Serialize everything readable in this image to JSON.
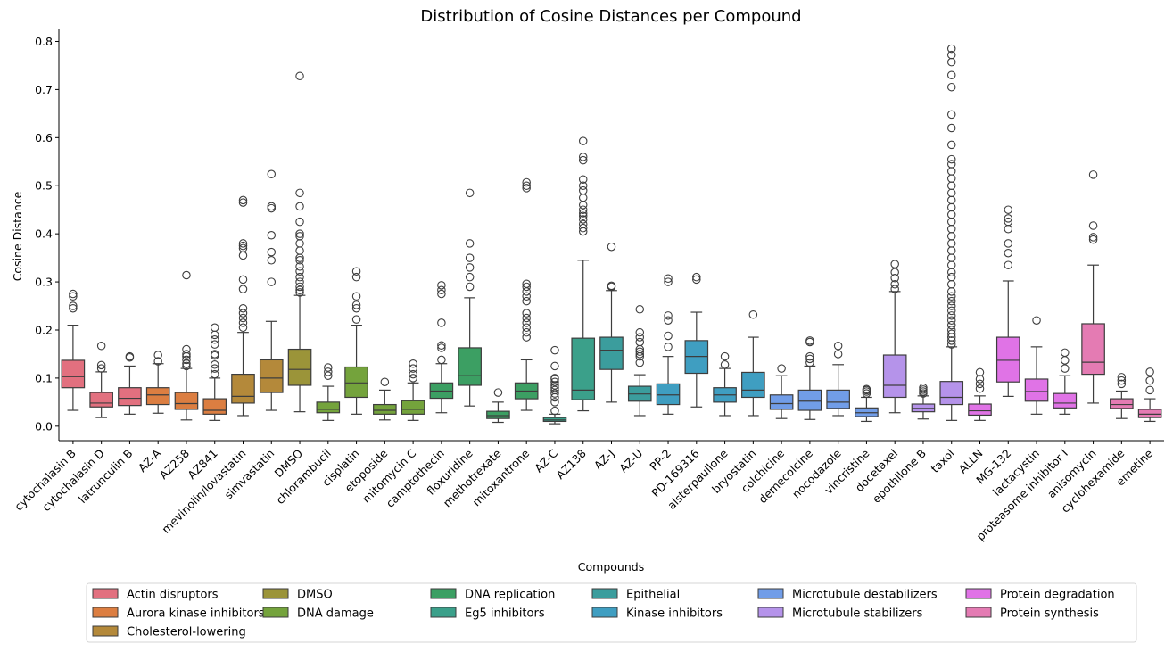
{
  "chart_data": {
    "type": "boxplot",
    "title": "Distribution of Cosine Distances per Compound",
    "xlabel": "Compounds",
    "ylabel": "Cosine Distance",
    "ylim": [
      -0.03,
      0.825
    ],
    "yticks": [
      0.0,
      0.1,
      0.2,
      0.3,
      0.4,
      0.5,
      0.6,
      0.7,
      0.8
    ],
    "ytick_labels": [
      "0.0",
      "0.1",
      "0.2",
      "0.3",
      "0.4",
      "0.5",
      "0.6",
      "0.7",
      "0.8"
    ],
    "grid": false,
    "legend_placement": "bottom-center",
    "legend": [
      {
        "name": "Actin disruptors",
        "color": "#e2707f"
      },
      {
        "name": "Aurora kinase inhibitors",
        "color": "#dc7e41"
      },
      {
        "name": "Cholesterol-lowering",
        "color": "#b4893a"
      },
      {
        "name": "DMSO",
        "color": "#9b9439"
      },
      {
        "name": "DNA damage",
        "color": "#74a33c"
      },
      {
        "name": "DNA replication",
        "color": "#3c9f63"
      },
      {
        "name": "Eg5 inhibitors",
        "color": "#3ba08a"
      },
      {
        "name": "Epithelial",
        "color": "#3b9d9d"
      },
      {
        "name": "Kinase inhibitors",
        "color": "#3f9ec1"
      },
      {
        "name": "Microtubule destabilizers",
        "color": "#719de8"
      },
      {
        "name": "Microtubule stabilizers",
        "color": "#b593ea"
      },
      {
        "name": "Protein degradation",
        "color": "#e073e6"
      },
      {
        "name": "Protein synthesis",
        "color": "#e47bb3"
      }
    ],
    "compounds": [
      {
        "name": "cytochalasin B",
        "group": "Actin disruptors",
        "q1": 0.08,
        "median": 0.103,
        "q3": 0.137,
        "whislo": 0.033,
        "whishi": 0.21,
        "fliers": [
          0.245,
          0.25,
          0.27,
          0.275
        ]
      },
      {
        "name": "cytochalasin D",
        "group": "Actin disruptors",
        "q1": 0.04,
        "median": 0.048,
        "q3": 0.07,
        "whislo": 0.018,
        "whishi": 0.113,
        "fliers": [
          0.12,
          0.127,
          0.167
        ]
      },
      {
        "name": "latrunculin B",
        "group": "Actin disruptors",
        "q1": 0.043,
        "median": 0.058,
        "q3": 0.08,
        "whislo": 0.025,
        "whishi": 0.125,
        "fliers": [
          0.143,
          0.145
        ]
      },
      {
        "name": "AZ-A",
        "group": "Aurora kinase inhibitors",
        "q1": 0.045,
        "median": 0.065,
        "q3": 0.08,
        "whislo": 0.027,
        "whishi": 0.13,
        "fliers": [
          0.135,
          0.148
        ]
      },
      {
        "name": "AZ258",
        "group": "Aurora kinase inhibitors",
        "q1": 0.035,
        "median": 0.047,
        "q3": 0.07,
        "whislo": 0.013,
        "whishi": 0.12,
        "fliers": [
          0.125,
          0.13,
          0.138,
          0.145,
          0.15,
          0.16,
          0.314
        ]
      },
      {
        "name": "AZ841",
        "group": "Aurora kinase inhibitors",
        "q1": 0.025,
        "median": 0.033,
        "q3": 0.057,
        "whislo": 0.012,
        "whishi": 0.1,
        "fliers": [
          0.108,
          0.12,
          0.128,
          0.147,
          0.15,
          0.17,
          0.18,
          0.19,
          0.205
        ]
      },
      {
        "name": "mevinolin/lovastatin",
        "group": "Cholesterol-lowering",
        "q1": 0.048,
        "median": 0.062,
        "q3": 0.108,
        "whislo": 0.022,
        "whishi": 0.195,
        "fliers": [
          0.205,
          0.215,
          0.225,
          0.235,
          0.245,
          0.285,
          0.305,
          0.355,
          0.37,
          0.375,
          0.38,
          0.465,
          0.47
        ]
      },
      {
        "name": "simvastatin",
        "group": "Cholesterol-lowering",
        "q1": 0.07,
        "median": 0.1,
        "q3": 0.138,
        "whislo": 0.033,
        "whishi": 0.218,
        "fliers": [
          0.3,
          0.345,
          0.362,
          0.397,
          0.453,
          0.457,
          0.524
        ]
      },
      {
        "name": "DMSO",
        "group": "DMSO",
        "q1": 0.085,
        "median": 0.118,
        "q3": 0.16,
        "whislo": 0.03,
        "whishi": 0.272,
        "fliers": [
          0.278,
          0.283,
          0.29,
          0.3,
          0.31,
          0.322,
          0.332,
          0.345,
          0.35,
          0.365,
          0.38,
          0.395,
          0.4,
          0.425,
          0.457,
          0.485,
          0.728
        ]
      },
      {
        "name": "chlorambucil",
        "group": "DNA damage",
        "q1": 0.028,
        "median": 0.035,
        "q3": 0.05,
        "whislo": 0.012,
        "whishi": 0.083,
        "fliers": [
          0.105,
          0.113,
          0.122
        ]
      },
      {
        "name": "cisplatin",
        "group": "DNA damage",
        "q1": 0.06,
        "median": 0.09,
        "q3": 0.123,
        "whislo": 0.025,
        "whishi": 0.21,
        "fliers": [
          0.222,
          0.245,
          0.252,
          0.27,
          0.31,
          0.322
        ]
      },
      {
        "name": "etoposide",
        "group": "DNA damage",
        "q1": 0.025,
        "median": 0.033,
        "q3": 0.045,
        "whislo": 0.013,
        "whishi": 0.075,
        "fliers": [
          0.092
        ]
      },
      {
        "name": "mitomycin C",
        "group": "DNA damage",
        "q1": 0.025,
        "median": 0.035,
        "q3": 0.053,
        "whislo": 0.012,
        "whishi": 0.09,
        "fliers": [
          0.1,
          0.108,
          0.12,
          0.13
        ]
      },
      {
        "name": "camptothecin",
        "group": "DNA replication",
        "q1": 0.058,
        "median": 0.073,
        "q3": 0.09,
        "whislo": 0.028,
        "whishi": 0.13,
        "fliers": [
          0.138,
          0.163,
          0.168,
          0.215,
          0.275,
          0.283,
          0.293
        ]
      },
      {
        "name": "floxuridine",
        "group": "DNA replication",
        "q1": 0.085,
        "median": 0.105,
        "q3": 0.163,
        "whislo": 0.042,
        "whishi": 0.267,
        "fliers": [
          0.29,
          0.31,
          0.33,
          0.35,
          0.38,
          0.485
        ]
      },
      {
        "name": "methotrexate",
        "group": "DNA replication",
        "q1": 0.016,
        "median": 0.022,
        "q3": 0.031,
        "whislo": 0.008,
        "whishi": 0.05,
        "fliers": [
          0.07
        ]
      },
      {
        "name": "mitoxantrone",
        "group": "DNA replication",
        "q1": 0.057,
        "median": 0.073,
        "q3": 0.09,
        "whislo": 0.033,
        "whishi": 0.138,
        "fliers": [
          0.185,
          0.195,
          0.205,
          0.215,
          0.225,
          0.235,
          0.26,
          0.27,
          0.28,
          0.29,
          0.296,
          0.495,
          0.5,
          0.507
        ]
      },
      {
        "name": "AZ-C",
        "group": "Eg5 inhibitors",
        "q1": 0.01,
        "median": 0.013,
        "q3": 0.018,
        "whislo": 0.005,
        "whishi": 0.025,
        "fliers": [
          0.032,
          0.05,
          0.06,
          0.068,
          0.075,
          0.08,
          0.085,
          0.092,
          0.098,
          0.1,
          0.125,
          0.158
        ]
      },
      {
        "name": "AZ138",
        "group": "Eg5 inhibitors",
        "q1": 0.055,
        "median": 0.075,
        "q3": 0.183,
        "whislo": 0.032,
        "whishi": 0.345,
        "fliers": [
          0.405,
          0.412,
          0.42,
          0.43,
          0.437,
          0.443,
          0.45,
          0.46,
          0.475,
          0.49,
          0.5,
          0.513,
          0.553,
          0.56,
          0.593
        ]
      },
      {
        "name": "AZ-J",
        "group": "Epithelial",
        "q1": 0.118,
        "median": 0.158,
        "q3": 0.185,
        "whislo": 0.05,
        "whishi": 0.282,
        "fliers": [
          0.29,
          0.292,
          0.373
        ]
      },
      {
        "name": "AZ-U",
        "group": "Epithelial",
        "q1": 0.052,
        "median": 0.067,
        "q3": 0.083,
        "whislo": 0.022,
        "whishi": 0.107,
        "fliers": [
          0.132,
          0.145,
          0.15,
          0.155,
          0.16,
          0.175,
          0.185,
          0.195,
          0.243
        ]
      },
      {
        "name": "PP-2",
        "group": "Kinase inhibitors",
        "q1": 0.045,
        "median": 0.065,
        "q3": 0.088,
        "whislo": 0.025,
        "whishi": 0.145,
        "fliers": [
          0.165,
          0.188,
          0.22,
          0.23,
          0.3,
          0.307
        ]
      },
      {
        "name": "PD-169316",
        "group": "Kinase inhibitors",
        "q1": 0.11,
        "median": 0.145,
        "q3": 0.178,
        "whislo": 0.04,
        "whishi": 0.237,
        "fliers": [
          0.305,
          0.31
        ]
      },
      {
        "name": "alsterpaullone",
        "group": "Kinase inhibitors",
        "q1": 0.05,
        "median": 0.065,
        "q3": 0.08,
        "whislo": 0.022,
        "whishi": 0.12,
        "fliers": [
          0.128,
          0.145
        ]
      },
      {
        "name": "bryostatin",
        "group": "Kinase inhibitors",
        "q1": 0.06,
        "median": 0.075,
        "q3": 0.112,
        "whislo": 0.022,
        "whishi": 0.185,
        "fliers": [
          0.232
        ]
      },
      {
        "name": "colchicine",
        "group": "Microtubule destabilizers",
        "q1": 0.035,
        "median": 0.047,
        "q3": 0.065,
        "whislo": 0.016,
        "whishi": 0.105,
        "fliers": [
          0.12
        ]
      },
      {
        "name": "demecolcine",
        "group": "Microtubule destabilizers",
        "q1": 0.033,
        "median": 0.052,
        "q3": 0.075,
        "whislo": 0.014,
        "whishi": 0.125,
        "fliers": [
          0.132,
          0.14,
          0.145,
          0.175,
          0.178
        ]
      },
      {
        "name": "nocodazole",
        "group": "Microtubule destabilizers",
        "q1": 0.037,
        "median": 0.05,
        "q3": 0.075,
        "whislo": 0.022,
        "whishi": 0.128,
        "fliers": [
          0.15,
          0.167
        ]
      },
      {
        "name": "vincristine",
        "group": "Microtubule destabilizers",
        "q1": 0.02,
        "median": 0.028,
        "q3": 0.038,
        "whislo": 0.01,
        "whishi": 0.06,
        "fliers": [
          0.068,
          0.072,
          0.075,
          0.077
        ]
      },
      {
        "name": "docetaxel",
        "group": "Microtubule stabilizers",
        "q1": 0.06,
        "median": 0.085,
        "q3": 0.148,
        "whislo": 0.028,
        "whishi": 0.28,
        "fliers": [
          0.285,
          0.295,
          0.308,
          0.32,
          0.337
        ]
      },
      {
        "name": "epothilone B",
        "group": "Microtubule stabilizers",
        "q1": 0.03,
        "median": 0.037,
        "q3": 0.046,
        "whislo": 0.015,
        "whishi": 0.063,
        "fliers": [
          0.068,
          0.072,
          0.076,
          0.08
        ]
      },
      {
        "name": "taxol",
        "group": "Microtubule stabilizers",
        "q1": 0.045,
        "median": 0.06,
        "q3": 0.093,
        "whislo": 0.012,
        "whishi": 0.165,
        "fliers": [
          0.17,
          0.178,
          0.185,
          0.192,
          0.2,
          0.21,
          0.22,
          0.23,
          0.24,
          0.25,
          0.26,
          0.27,
          0.28,
          0.295,
          0.31,
          0.32,
          0.335,
          0.35,
          0.365,
          0.38,
          0.395,
          0.41,
          0.425,
          0.44,
          0.455,
          0.47,
          0.485,
          0.5,
          0.515,
          0.53,
          0.545,
          0.555,
          0.585,
          0.62,
          0.648,
          0.705,
          0.73,
          0.757,
          0.772,
          0.785
        ]
      },
      {
        "name": "ALLN",
        "group": "Protein degradation",
        "q1": 0.023,
        "median": 0.032,
        "q3": 0.046,
        "whislo": 0.012,
        "whishi": 0.063,
        "fliers": [
          0.078,
          0.088,
          0.098,
          0.112
        ]
      },
      {
        "name": "MG-132",
        "group": "Protein degradation",
        "q1": 0.092,
        "median": 0.137,
        "q3": 0.185,
        "whislo": 0.062,
        "whishi": 0.302,
        "fliers": [
          0.335,
          0.36,
          0.38,
          0.41,
          0.425,
          0.432,
          0.45
        ]
      },
      {
        "name": "lactacystin",
        "group": "Protein degradation",
        "q1": 0.052,
        "median": 0.072,
        "q3": 0.098,
        "whislo": 0.025,
        "whishi": 0.165,
        "fliers": [
          0.22
        ]
      },
      {
        "name": "proteasome inhibitor I",
        "group": "Protein degradation",
        "q1": 0.038,
        "median": 0.048,
        "q3": 0.068,
        "whislo": 0.025,
        "whishi": 0.105,
        "fliers": [
          0.12,
          0.137,
          0.153
        ]
      },
      {
        "name": "anisomycin",
        "group": "Protein synthesis",
        "q1": 0.108,
        "median": 0.133,
        "q3": 0.213,
        "whislo": 0.048,
        "whishi": 0.335,
        "fliers": [
          0.388,
          0.393,
          0.417,
          0.523
        ]
      },
      {
        "name": "cyclohexamide",
        "group": "Protein synthesis",
        "q1": 0.037,
        "median": 0.045,
        "q3": 0.057,
        "whislo": 0.016,
        "whishi": 0.073,
        "fliers": [
          0.088,
          0.095,
          0.102
        ]
      },
      {
        "name": "emetine",
        "group": "Protein synthesis",
        "q1": 0.018,
        "median": 0.025,
        "q3": 0.035,
        "whislo": 0.01,
        "whishi": 0.057,
        "fliers": [
          0.075,
          0.095,
          0.113
        ]
      }
    ]
  }
}
